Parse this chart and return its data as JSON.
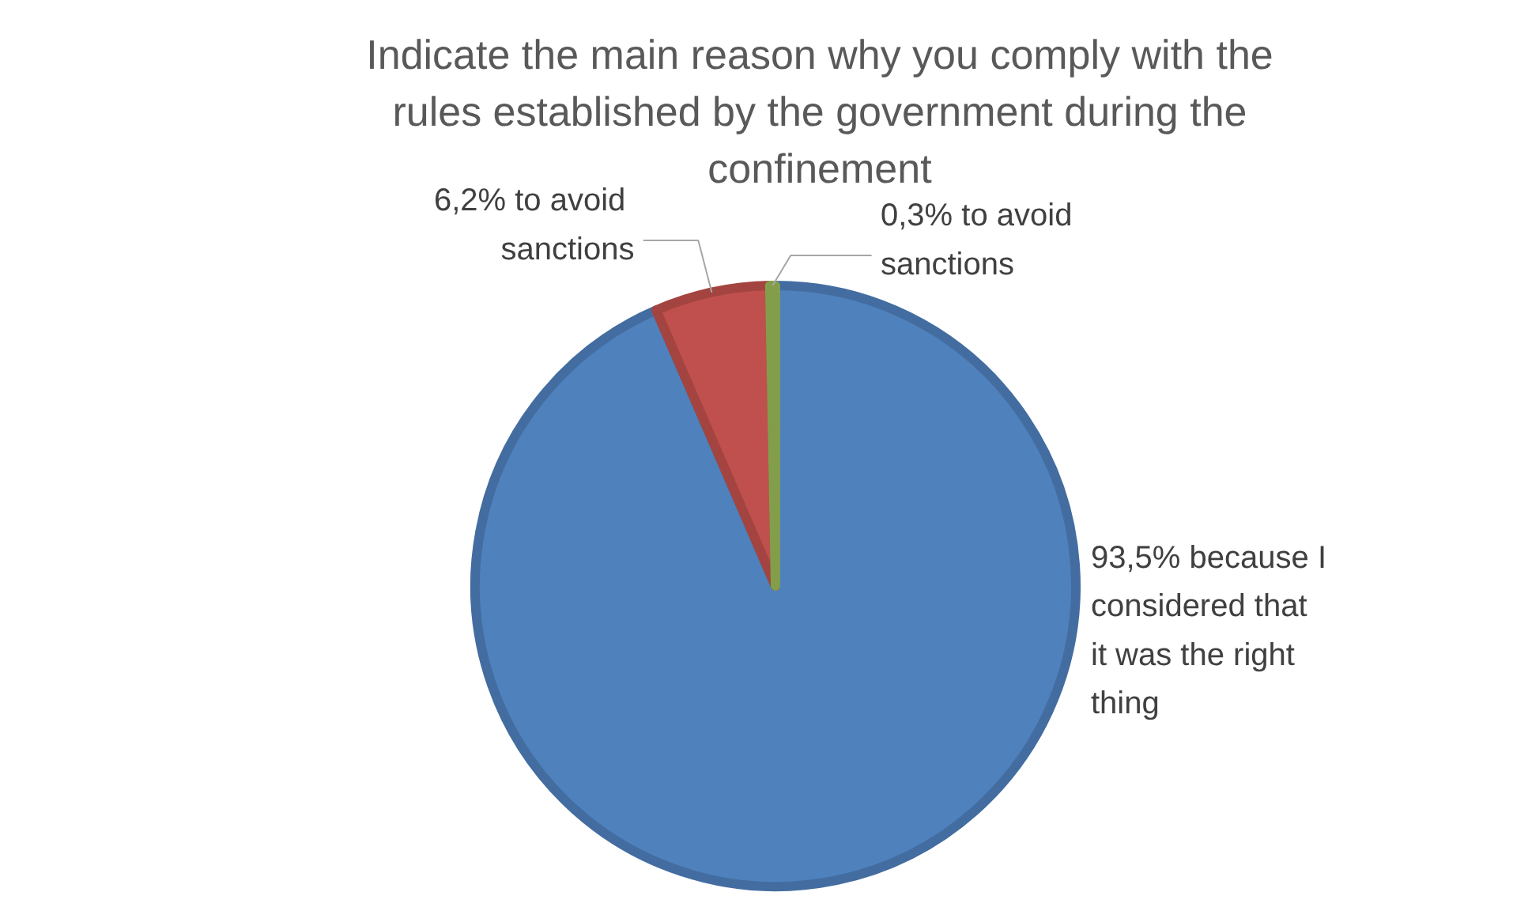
{
  "chart_data": {
    "type": "pie",
    "title": "Indicate the main reason why you comply with the rules established by the government during the confinement",
    "categories": [
      "93,5% because I considered that it was the right thing",
      "6,2%  to avoid sanctions",
      "0,3% to avoid sanctions"
    ],
    "values": [
      93.5,
      6.2,
      0.3
    ],
    "colors": [
      "#4f81bd",
      "#c0504d",
      "#9bbb59"
    ]
  }
}
